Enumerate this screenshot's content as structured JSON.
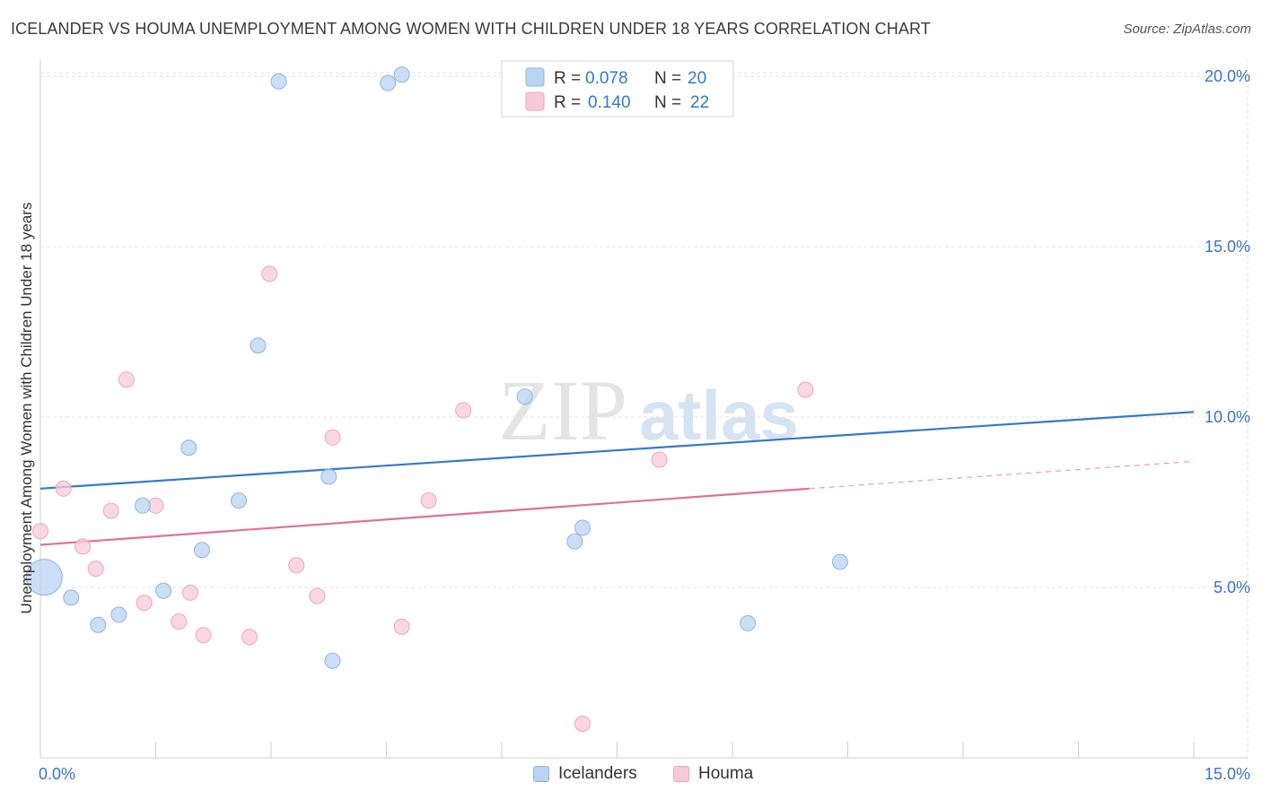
{
  "title": "ICELANDER VS HOUMA UNEMPLOYMENT AMONG WOMEN WITH CHILDREN UNDER 18 YEARS CORRELATION CHART",
  "source": "Source: ZipAtlas.com",
  "watermark": {
    "zip": "ZIP",
    "atlas": "atlas"
  },
  "colors": {
    "blue_fill": "#b9d3f3",
    "blue_stroke": "#8db5e6",
    "blue_line": "#3578cc",
    "pink_fill": "#f9c9d8",
    "pink_stroke": "#eea5bd",
    "pink_line": "#e0719a",
    "tick_text": "#3a73c2",
    "grid": "#e3e3e3"
  },
  "legend": {
    "r_label": "R =",
    "n_label": "N =",
    "items": [
      {
        "r": "0.078",
        "n": "20"
      },
      {
        "r": "0.140",
        "n": "22"
      }
    ]
  },
  "chart_data": {
    "type": "scatter",
    "ylabel": "Unemployment Among Women with Children Under 18 years",
    "xlim": [
      0,
      15
    ],
    "ylim": [
      0,
      20.5
    ],
    "x_tick_labels": [
      {
        "v": 0,
        "label": "0.0%"
      },
      {
        "v": 15,
        "label": "15.0%"
      }
    ],
    "y_ticks": [
      {
        "v": 5,
        "label": "5.0%"
      },
      {
        "v": 10,
        "label": "10.0%"
      },
      {
        "v": 15,
        "label": "15.0%"
      },
      {
        "v": 20,
        "label": "20.0%"
      }
    ],
    "x_minor_ticks": [
      0,
      1.5,
      3,
      4.5,
      6,
      7.5,
      9,
      10.5,
      12,
      13.5,
      15
    ],
    "series": [
      {
        "name": "Icelanders",
        "points": [
          {
            "x": 0.05,
            "y": 5.3,
            "big": true
          },
          {
            "x": 0.4,
            "y": 4.7
          },
          {
            "x": 0.75,
            "y": 3.9
          },
          {
            "x": 1.02,
            "y": 4.2
          },
          {
            "x": 1.33,
            "y": 7.4
          },
          {
            "x": 1.6,
            "y": 4.9
          },
          {
            "x": 1.93,
            "y": 9.1
          },
          {
            "x": 2.1,
            "y": 6.1
          },
          {
            "x": 2.58,
            "y": 7.55
          },
          {
            "x": 2.83,
            "y": 12.1
          },
          {
            "x": 3.1,
            "y": 19.85
          },
          {
            "x": 3.75,
            "y": 8.25
          },
          {
            "x": 3.8,
            "y": 2.85
          },
          {
            "x": 4.52,
            "y": 19.8
          },
          {
            "x": 4.7,
            "y": 20.05
          },
          {
            "x": 6.3,
            "y": 10.6
          },
          {
            "x": 6.95,
            "y": 6.35
          },
          {
            "x": 7.05,
            "y": 6.75
          },
          {
            "x": 9.2,
            "y": 3.95
          },
          {
            "x": 10.4,
            "y": 5.75
          }
        ],
        "trend": {
          "x0": 0,
          "y0": 7.9,
          "x1": 15,
          "y1": 10.15
        }
      },
      {
        "name": "Houma",
        "points": [
          {
            "x": 0.0,
            "y": 6.65
          },
          {
            "x": 0.3,
            "y": 7.9
          },
          {
            "x": 0.55,
            "y": 6.2
          },
          {
            "x": 0.72,
            "y": 5.55
          },
          {
            "x": 0.92,
            "y": 7.25
          },
          {
            "x": 1.12,
            "y": 11.1
          },
          {
            "x": 1.35,
            "y": 4.55
          },
          {
            "x": 1.5,
            "y": 7.4
          },
          {
            "x": 1.8,
            "y": 4.0
          },
          {
            "x": 1.95,
            "y": 4.85
          },
          {
            "x": 2.12,
            "y": 3.6
          },
          {
            "x": 2.72,
            "y": 3.55
          },
          {
            "x": 2.98,
            "y": 14.2
          },
          {
            "x": 3.33,
            "y": 5.65
          },
          {
            "x": 3.6,
            "y": 4.75
          },
          {
            "x": 3.8,
            "y": 9.4
          },
          {
            "x": 4.7,
            "y": 3.85
          },
          {
            "x": 5.05,
            "y": 7.55
          },
          {
            "x": 5.5,
            "y": 10.2
          },
          {
            "x": 7.05,
            "y": 1.0
          },
          {
            "x": 8.05,
            "y": 8.75
          },
          {
            "x": 9.95,
            "y": 10.8
          }
        ],
        "trend": {
          "x0": 0,
          "y0": 6.25,
          "x1": 10.0,
          "y1": 7.9
        },
        "trend_dashed": {
          "x0": 10.0,
          "y0": 7.9,
          "x1": 15,
          "y1": 8.7
        }
      }
    ]
  }
}
